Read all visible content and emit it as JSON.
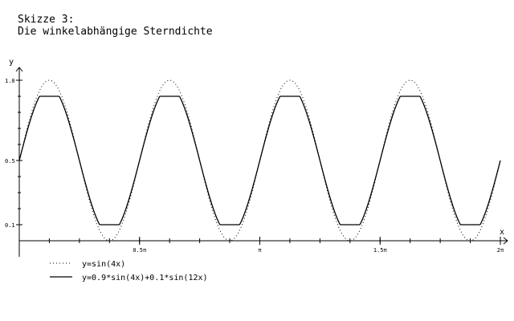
{
  "header": {
    "line1": "Skizze 3:",
    "line2": "Die winkelabhängige Sterndichte"
  },
  "chart_data": {
    "type": "line",
    "xlabel": "x",
    "ylabel": "y",
    "xlim": [
      0,
      6.2832
    ],
    "ylim": [
      0,
      1.05
    ],
    "grid": false,
    "legend_position": "bottom-left",
    "x_ticks": [
      {
        "value": 1.5708,
        "label": "0.5π"
      },
      {
        "value": 3.1416,
        "label": "π"
      },
      {
        "value": 4.7124,
        "label": "1.5π"
      },
      {
        "value": 6.2832,
        "label": "2π"
      }
    ],
    "y_ticks": [
      {
        "value": 0.1,
        "label": "0.1"
      },
      {
        "value": 0.5,
        "label": "0.5"
      },
      {
        "value": 1.0,
        "label": "1.0"
      }
    ],
    "series": [
      {
        "name": "y=sin(4x)",
        "style": "dotted",
        "formula_note_visible": false,
        "x": [
          0,
          0.196,
          0.393,
          0.589,
          0.785,
          0.982,
          1.178,
          1.374,
          1.571,
          1.767,
          1.963,
          2.16,
          2.356,
          2.553,
          2.749,
          2.945,
          3.142,
          3.338,
          3.534,
          3.731,
          3.927,
          4.123,
          4.32,
          4.516,
          4.712,
          4.909,
          5.105,
          5.301,
          5.498,
          5.694,
          5.89,
          6.087,
          6.283
        ],
        "y": [
          0.5,
          0.85,
          1.0,
          0.85,
          0.5,
          0.15,
          0.0,
          0.15,
          0.5,
          0.85,
          1.0,
          0.85,
          0.5,
          0.15,
          0.0,
          0.15,
          0.5,
          0.85,
          1.0,
          0.85,
          0.5,
          0.15,
          0.0,
          0.15,
          0.5,
          0.85,
          1.0,
          0.85,
          0.5,
          0.15,
          0.0,
          0.15,
          0.5
        ]
      },
      {
        "name": "y=0.9*sin(4x)+0.1*sin(12x)",
        "style": "solid",
        "x": [
          0,
          0.196,
          0.393,
          0.589,
          0.785,
          0.982,
          1.178,
          1.374,
          1.571,
          1.767,
          1.963,
          2.16,
          2.356,
          2.553,
          2.749,
          2.945,
          3.142,
          3.338,
          3.534,
          3.731,
          3.927,
          4.123,
          4.32,
          4.516,
          4.712,
          4.909,
          5.105,
          5.301,
          5.498,
          5.694,
          5.89,
          6.087,
          6.283
        ],
        "y": [
          0.5,
          0.87,
          0.9,
          0.87,
          0.5,
          0.13,
          0.1,
          0.13,
          0.5,
          0.87,
          0.9,
          0.87,
          0.5,
          0.13,
          0.1,
          0.13,
          0.5,
          0.87,
          0.9,
          0.87,
          0.5,
          0.13,
          0.1,
          0.13,
          0.5,
          0.87,
          0.9,
          0.87,
          0.5,
          0.13,
          0.1,
          0.13,
          0.5
        ]
      }
    ]
  }
}
